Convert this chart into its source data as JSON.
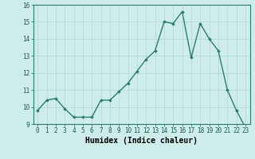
{
  "x": [
    0,
    1,
    2,
    3,
    4,
    5,
    6,
    7,
    8,
    9,
    10,
    11,
    12,
    13,
    14,
    15,
    16,
    17,
    18,
    19,
    20,
    21,
    22,
    23
  ],
  "y": [
    9.8,
    10.4,
    10.5,
    9.9,
    9.4,
    9.4,
    9.4,
    10.4,
    10.4,
    10.9,
    11.4,
    12.1,
    12.8,
    13.3,
    15.0,
    14.9,
    15.6,
    12.9,
    14.9,
    14.0,
    13.3,
    11.0,
    9.8,
    8.8
  ],
  "line_color": "#2a7d6e",
  "marker": "D",
  "marker_size": 1.8,
  "line_width": 1.0,
  "bg_color": "#ceecea",
  "grid_color": "#b8d8d6",
  "xlabel": "Humidex (Indice chaleur)",
  "ylim": [
    9,
    16
  ],
  "xlim": [
    -0.5,
    23.5
  ],
  "yticks": [
    9,
    10,
    11,
    12,
    13,
    14,
    15,
    16
  ],
  "xticks": [
    0,
    1,
    2,
    3,
    4,
    5,
    6,
    7,
    8,
    9,
    10,
    11,
    12,
    13,
    14,
    15,
    16,
    17,
    18,
    19,
    20,
    21,
    22,
    23
  ],
  "tick_fontsize": 5.5,
  "xlabel_fontsize": 7.0,
  "spine_color": "#2a7d6e"
}
